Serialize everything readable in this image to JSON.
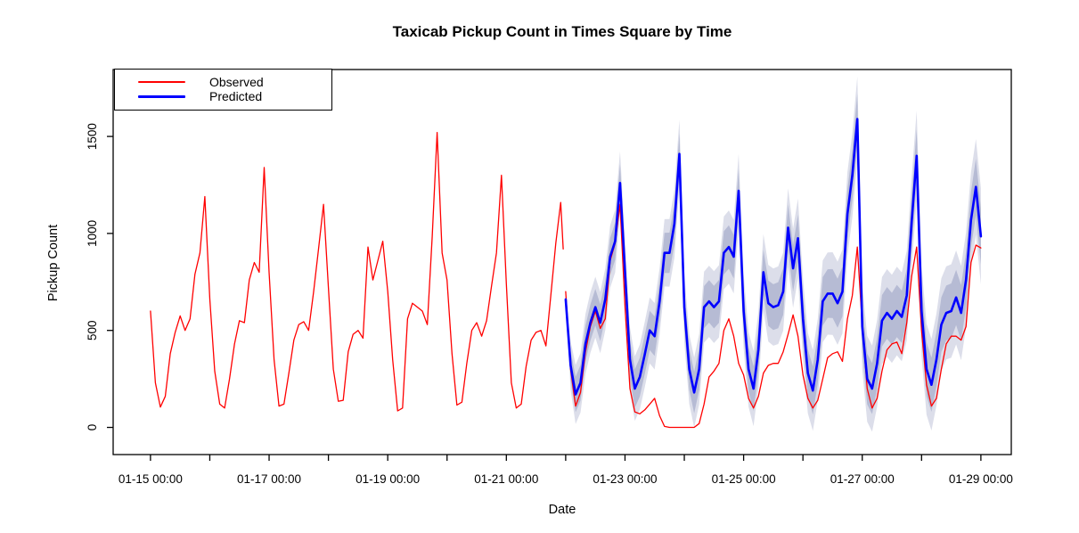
{
  "chart_data": {
    "type": "line",
    "title": "Taxicab Pickup Count in Times Square by Time",
    "xlabel": "Date",
    "ylabel": "Pickup Count",
    "grid": false,
    "legend_position": "topleft",
    "y_ticks": [
      0,
      500,
      1000,
      1500
    ],
    "y_tick_labels": [
      "0",
      "500",
      "1000",
      "1500"
    ],
    "ylim": [
      -140,
      1845
    ],
    "xlim_hours": [
      -15.1,
      348.3
    ],
    "x_minor_tick_hours": [
      0,
      24,
      48,
      72,
      96,
      120,
      144,
      168,
      192,
      216,
      240,
      264,
      288,
      312,
      336
    ],
    "x_tick_hours": [
      0,
      48,
      96,
      144,
      192,
      240,
      288,
      336
    ],
    "x_tick_labels": [
      "01-15 00:00",
      "01-17 00:00",
      "01-19 00:00",
      "01-21 00:00",
      "01-23 00:00",
      "01-25 00:00",
      "01-27 00:00",
      "01-29 00:00"
    ],
    "series": [
      {
        "name": "Observed",
        "color": "#FF0000",
        "line_width": 1.3,
        "segments": [
          {
            "label": "training",
            "start_hour": 0,
            "step_hours": 2,
            "values": [
              600,
              230,
              105,
              160,
              380,
              490,
              575,
              500,
              560,
              790,
              900,
              1190,
              660,
              290,
              120,
              100,
              250,
              430,
              550,
              540,
              760,
              850,
              800,
              1340,
              800,
              350,
              110,
              120,
              280,
              450,
              530,
              545,
              500,
              700,
              920,
              1150,
              720,
              300,
              135,
              140,
              390,
              480,
              500,
              460,
              930,
              760,
              860,
              960,
              700,
              350,
              85,
              100,
              560,
              640,
              620,
              600,
              530,
              985,
              1520,
              900,
              760,
              380,
              115,
              130,
              330,
              500,
              540,
              470,
              550,
              730,
              900,
              1300,
              740,
              230,
              100,
              120,
              315,
              450,
              490,
              500,
              420,
              680,
              950,
              1160
            ],
            "tail_point": {
              "hour": 167,
              "value": 920
            }
          },
          {
            "label": "test",
            "start_hour": 168,
            "step_hours": 2,
            "values": [
              700,
              300,
              110,
              180,
              390,
              520,
              600,
              510,
              560,
              860,
              950,
              1150,
              620,
              200,
              80,
              70,
              90,
              120,
              150,
              60,
              5,
              0,
              0,
              0,
              0,
              0,
              0,
              20,
              120,
              260,
              290,
              330,
              500,
              560,
              470,
              330,
              270,
              150,
              100,
              160,
              280,
              320,
              330,
              330,
              390,
              480,
              580,
              470,
              270,
              150,
              100,
              140,
              250,
              360,
              380,
              390,
              340,
              560,
              680,
              930,
              530,
              200,
              100,
              150,
              290,
              400,
              430,
              440,
              380,
              540,
              780,
              930,
              500,
              220,
              110,
              150,
              300,
              430,
              470,
              470,
              450,
              520,
              850,
              940,
              925
            ]
          }
        ]
      },
      {
        "name": "Predicted",
        "color": "#0000FF",
        "line_width": 2.6,
        "segments": [
          {
            "label": "forecast",
            "start_hour": 168,
            "step_hours": 2,
            "values": [
              660,
              320,
              170,
              230,
              430,
              540,
              620,
              540,
              660,
              880,
              960,
              1260,
              800,
              350,
              200,
              260,
              375,
              500,
              470,
              650,
              900,
              900,
              1050,
              1410,
              620,
              300,
              180,
              300,
              620,
              650,
              620,
              650,
              900,
              930,
              880,
              1220,
              600,
              300,
              200,
              400,
              800,
              640,
              620,
              630,
              700,
              1030,
              820,
              975,
              560,
              280,
              190,
              350,
              650,
              690,
              690,
              640,
              700,
              1100,
              1300,
              1590,
              520,
              250,
              200,
              330,
              550,
              590,
              560,
              600,
              570,
              680,
              1060,
              1400,
              600,
              300,
              220,
              350,
              530,
              590,
              600,
              670,
              590,
              760,
              1070,
              1240,
              985
            ]
          }
        ]
      }
    ],
    "confidence_bands": {
      "applies_to": "Predicted",
      "start_hour": 168,
      "levels": [
        {
          "level": 80,
          "color": "#b6bbd4",
          "half_width_base": 90,
          "half_width_per_day": 8
        },
        {
          "level": 95,
          "color": "#dcdeea",
          "half_width_base": 150,
          "half_width_per_day": 14
        }
      ],
      "ramp_note": "band width ramps up over first ~3 hours of forecast"
    },
    "frame_color": "#000000",
    "background": "#ffffff"
  },
  "legend": {
    "items": [
      {
        "label": "Observed",
        "color": "#FF0000"
      },
      {
        "label": "Predicted",
        "color": "#0000FF"
      }
    ]
  }
}
